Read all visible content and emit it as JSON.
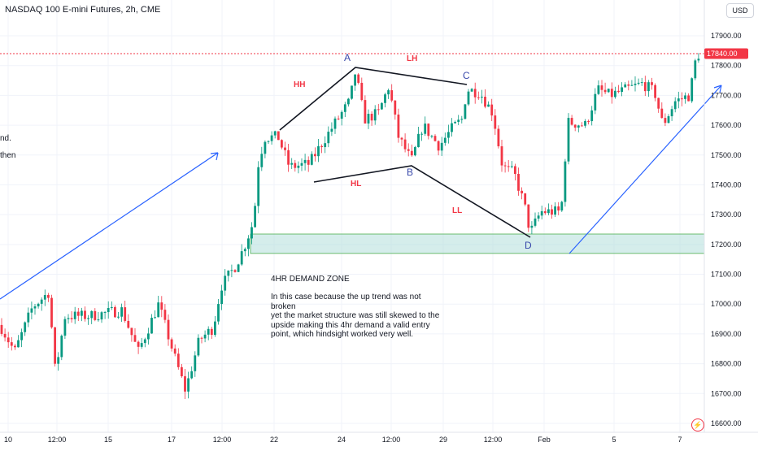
{
  "header": {
    "symbol_title": "NASDAQ 100 E-mini Futures, 2h, CME",
    "currency_label": "USD"
  },
  "price_axis": {
    "ticks": [
      "17900.00",
      "17800.00",
      "17700.00",
      "17600.00",
      "17500.00",
      "17400.00",
      "17300.00",
      "17200.00",
      "17100.00",
      "17000.00",
      "16900.00",
      "16800.00",
      "16700.00",
      "16600.00"
    ],
    "last_price_label": "17840.00"
  },
  "time_axis": {
    "ticks": [
      "10",
      "12:00",
      "15",
      "17",
      "12:00",
      "22",
      "24",
      "12:00",
      "29",
      "12:00",
      "Feb",
      "5",
      "7"
    ]
  },
  "labels": {
    "hh": "HH",
    "lh": "LH",
    "hl": "HL",
    "ll": "LL",
    "point_a": "A",
    "point_b": "B",
    "point_c": "C",
    "point_d": "D"
  },
  "annotation": {
    "title": "4HR DEMAND ZONE",
    "body": "In this case because the up trend was not broken\nyet the market structure was still skewed to the\n upside making this 4hr demand a valid entry\npoint, which hindsight worked very well."
  },
  "clipped_text": [
    "nd.",
    "then"
  ],
  "colors": {
    "up": "#089981",
    "down": "#f23645",
    "zone": "#b2dfdb",
    "trend": "#2962ff",
    "price_line": "#f23645"
  },
  "chart_data": {
    "type": "candlestick",
    "title": "NASDAQ 100 E-mini Futures, 2h, CME",
    "ylim": [
      16580,
      17960
    ],
    "y_ticks": [
      17900,
      17800,
      17700,
      17600,
      17500,
      17400,
      17300,
      17200,
      17100,
      17000,
      16900,
      16800,
      16700,
      16600
    ],
    "last_price": 17840,
    "demand_zone": [
      17170,
      17235
    ],
    "swing_points": {
      "A": 17790,
      "B": 17470,
      "C": 17735,
      "D": 17225
    }
  }
}
